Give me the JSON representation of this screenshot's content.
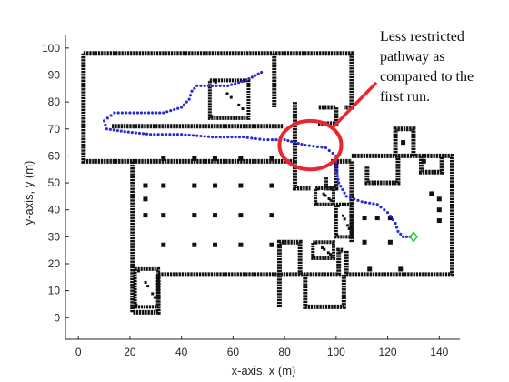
{
  "chart_data": {
    "type": "scatter",
    "title": "",
    "xlabel": "x-axis, x (m)",
    "ylabel": "y-axis, y (m)",
    "xlim": [
      -5,
      148
    ],
    "ylim": [
      -8,
      105
    ],
    "xticks": [
      0,
      20,
      40,
      60,
      80,
      100,
      120,
      140
    ],
    "yticks": [
      0,
      10,
      20,
      30,
      40,
      50,
      60,
      70,
      80,
      90,
      100
    ],
    "grid": false,
    "annotation": {
      "lines": [
        "Less restricted",
        "pathway as",
        "compared to the",
        "first run."
      ],
      "highlight_center": [
        90,
        64
      ],
      "highlight_radii": [
        12,
        9
      ],
      "highlight_color": "#e8262e"
    },
    "series": [
      {
        "role": "planned-path",
        "color": "#2b2bd6",
        "marker": "dot",
        "x": [
          71,
          65,
          58,
          52,
          46,
          44,
          43,
          40,
          33,
          23,
          14,
          10,
          11,
          18,
          28,
          40,
          52,
          64,
          72,
          80,
          88,
          96,
          100,
          100,
          101,
          104,
          110,
          116,
          120,
          123,
          124,
          126,
          130
        ],
        "y": [
          91,
          88,
          86,
          86,
          86,
          84,
          81,
          78,
          76,
          76,
          76,
          73,
          70,
          69,
          68,
          68,
          67,
          67,
          66,
          66,
          64,
          63,
          60,
          55,
          50,
          45,
          43,
          42,
          39,
          35,
          32,
          30,
          30
        ]
      },
      {
        "role": "goal",
        "color": "#2ec92e",
        "marker": "diamond",
        "x": [
          130
        ],
        "y": [
          30
        ]
      }
    ],
    "obstacles": {
      "color": "#111111",
      "walls": [
        [
          [
            2,
            98
          ],
          [
            106,
            98
          ],
          [
            106,
            78
          ],
          [
            103,
            78
          ]
        ],
        [
          [
            2,
            98
          ],
          [
            2,
            58
          ],
          [
            21,
            58
          ],
          [
            21,
            2
          ],
          [
            31,
            2
          ],
          [
            31,
            16
          ]
        ],
        [
          [
            31,
            16
          ],
          [
            101,
            16
          ],
          [
            101,
            25
          ],
          [
            103,
            25
          ]
        ],
        [
          [
            21,
            58
          ],
          [
            84,
            58
          ]
        ],
        [
          [
            98,
            58
          ],
          [
            106,
            58
          ]
        ],
        [
          [
            106,
            58
          ],
          [
            106,
            28
          ]
        ],
        [
          [
            106,
            60
          ],
          [
            145,
            60
          ],
          [
            145,
            16
          ],
          [
            104,
            16
          ],
          [
            104,
            25
          ]
        ],
        [
          [
            76,
            98
          ],
          [
            76,
            78
          ]
        ],
        [
          [
            88,
            16
          ],
          [
            88,
            4
          ],
          [
            103,
            4
          ],
          [
            103,
            16
          ]
        ],
        [
          [
            78,
            4
          ],
          [
            78,
            28
          ],
          [
            86,
            28
          ],
          [
            86,
            16
          ]
        ],
        [
          [
            84,
            80
          ],
          [
            84,
            58
          ]
        ],
        [
          [
            84,
            58
          ],
          [
            84,
            48
          ],
          [
            90,
            48
          ]
        ],
        [
          [
            96,
            52
          ],
          [
            96,
            48
          ],
          [
            100,
            48
          ],
          [
            100,
            58
          ]
        ],
        [
          [
            112,
            56
          ],
          [
            112,
            50
          ],
          [
            124,
            50
          ],
          [
            124,
            60
          ]
        ],
        [
          [
            133,
            60
          ],
          [
            133,
            54
          ],
          [
            141,
            54
          ],
          [
            141,
            60
          ]
        ],
        [
          [
            123,
            60
          ],
          [
            123,
            70
          ],
          [
            130,
            70
          ],
          [
            130,
            60
          ]
        ],
        [
          [
            93,
            72
          ],
          [
            100,
            72
          ],
          [
            100,
            78
          ],
          [
            93,
            78
          ]
        ],
        [
          [
            13,
            71
          ],
          [
            80,
            71
          ]
        ]
      ],
      "blocks": [
        [
          [
            51,
            88
          ],
          [
            66,
            88
          ],
          [
            66,
            74
          ],
          [
            51,
            74
          ],
          [
            51,
            88
          ]
        ],
        [
          [
            22,
            18
          ],
          [
            31,
            18
          ],
          [
            31,
            4
          ],
          [
            22,
            4
          ],
          [
            22,
            18
          ]
        ],
        [
          [
            92,
            48
          ],
          [
            99,
            48
          ],
          [
            99,
            42
          ],
          [
            92,
            42
          ],
          [
            92,
            48
          ]
        ],
        [
          [
            100,
            42
          ],
          [
            106,
            42
          ],
          [
            106,
            30
          ],
          [
            100,
            30
          ],
          [
            100,
            42
          ]
        ],
        [
          [
            91,
            28
          ],
          [
            99,
            28
          ],
          [
            99,
            22
          ],
          [
            91,
            22
          ],
          [
            91,
            28
          ]
        ]
      ],
      "pillars": [
        [
          33,
          59
        ],
        [
          45,
          59
        ],
        [
          53,
          59
        ],
        [
          63,
          59
        ],
        [
          75,
          59
        ],
        [
          33,
          49
        ],
        [
          45,
          49
        ],
        [
          53,
          49
        ],
        [
          63,
          49
        ],
        [
          75,
          49
        ],
        [
          33,
          38
        ],
        [
          45,
          38
        ],
        [
          53,
          38
        ],
        [
          63,
          38
        ],
        [
          75,
          38
        ],
        [
          33,
          27
        ],
        [
          45,
          27
        ],
        [
          53,
          27
        ],
        [
          63,
          27
        ],
        [
          75,
          27
        ],
        [
          26,
          44
        ],
        [
          26,
          49
        ],
        [
          26,
          38
        ],
        [
          111,
          37
        ],
        [
          116,
          37
        ],
        [
          121,
          37
        ],
        [
          111,
          28
        ],
        [
          121,
          28
        ],
        [
          113,
          18
        ],
        [
          125,
          18
        ],
        [
          140,
          40
        ],
        [
          140,
          44
        ],
        [
          140,
          36
        ],
        [
          126,
          65
        ],
        [
          134,
          58
        ],
        [
          137,
          46
        ]
      ]
    }
  }
}
